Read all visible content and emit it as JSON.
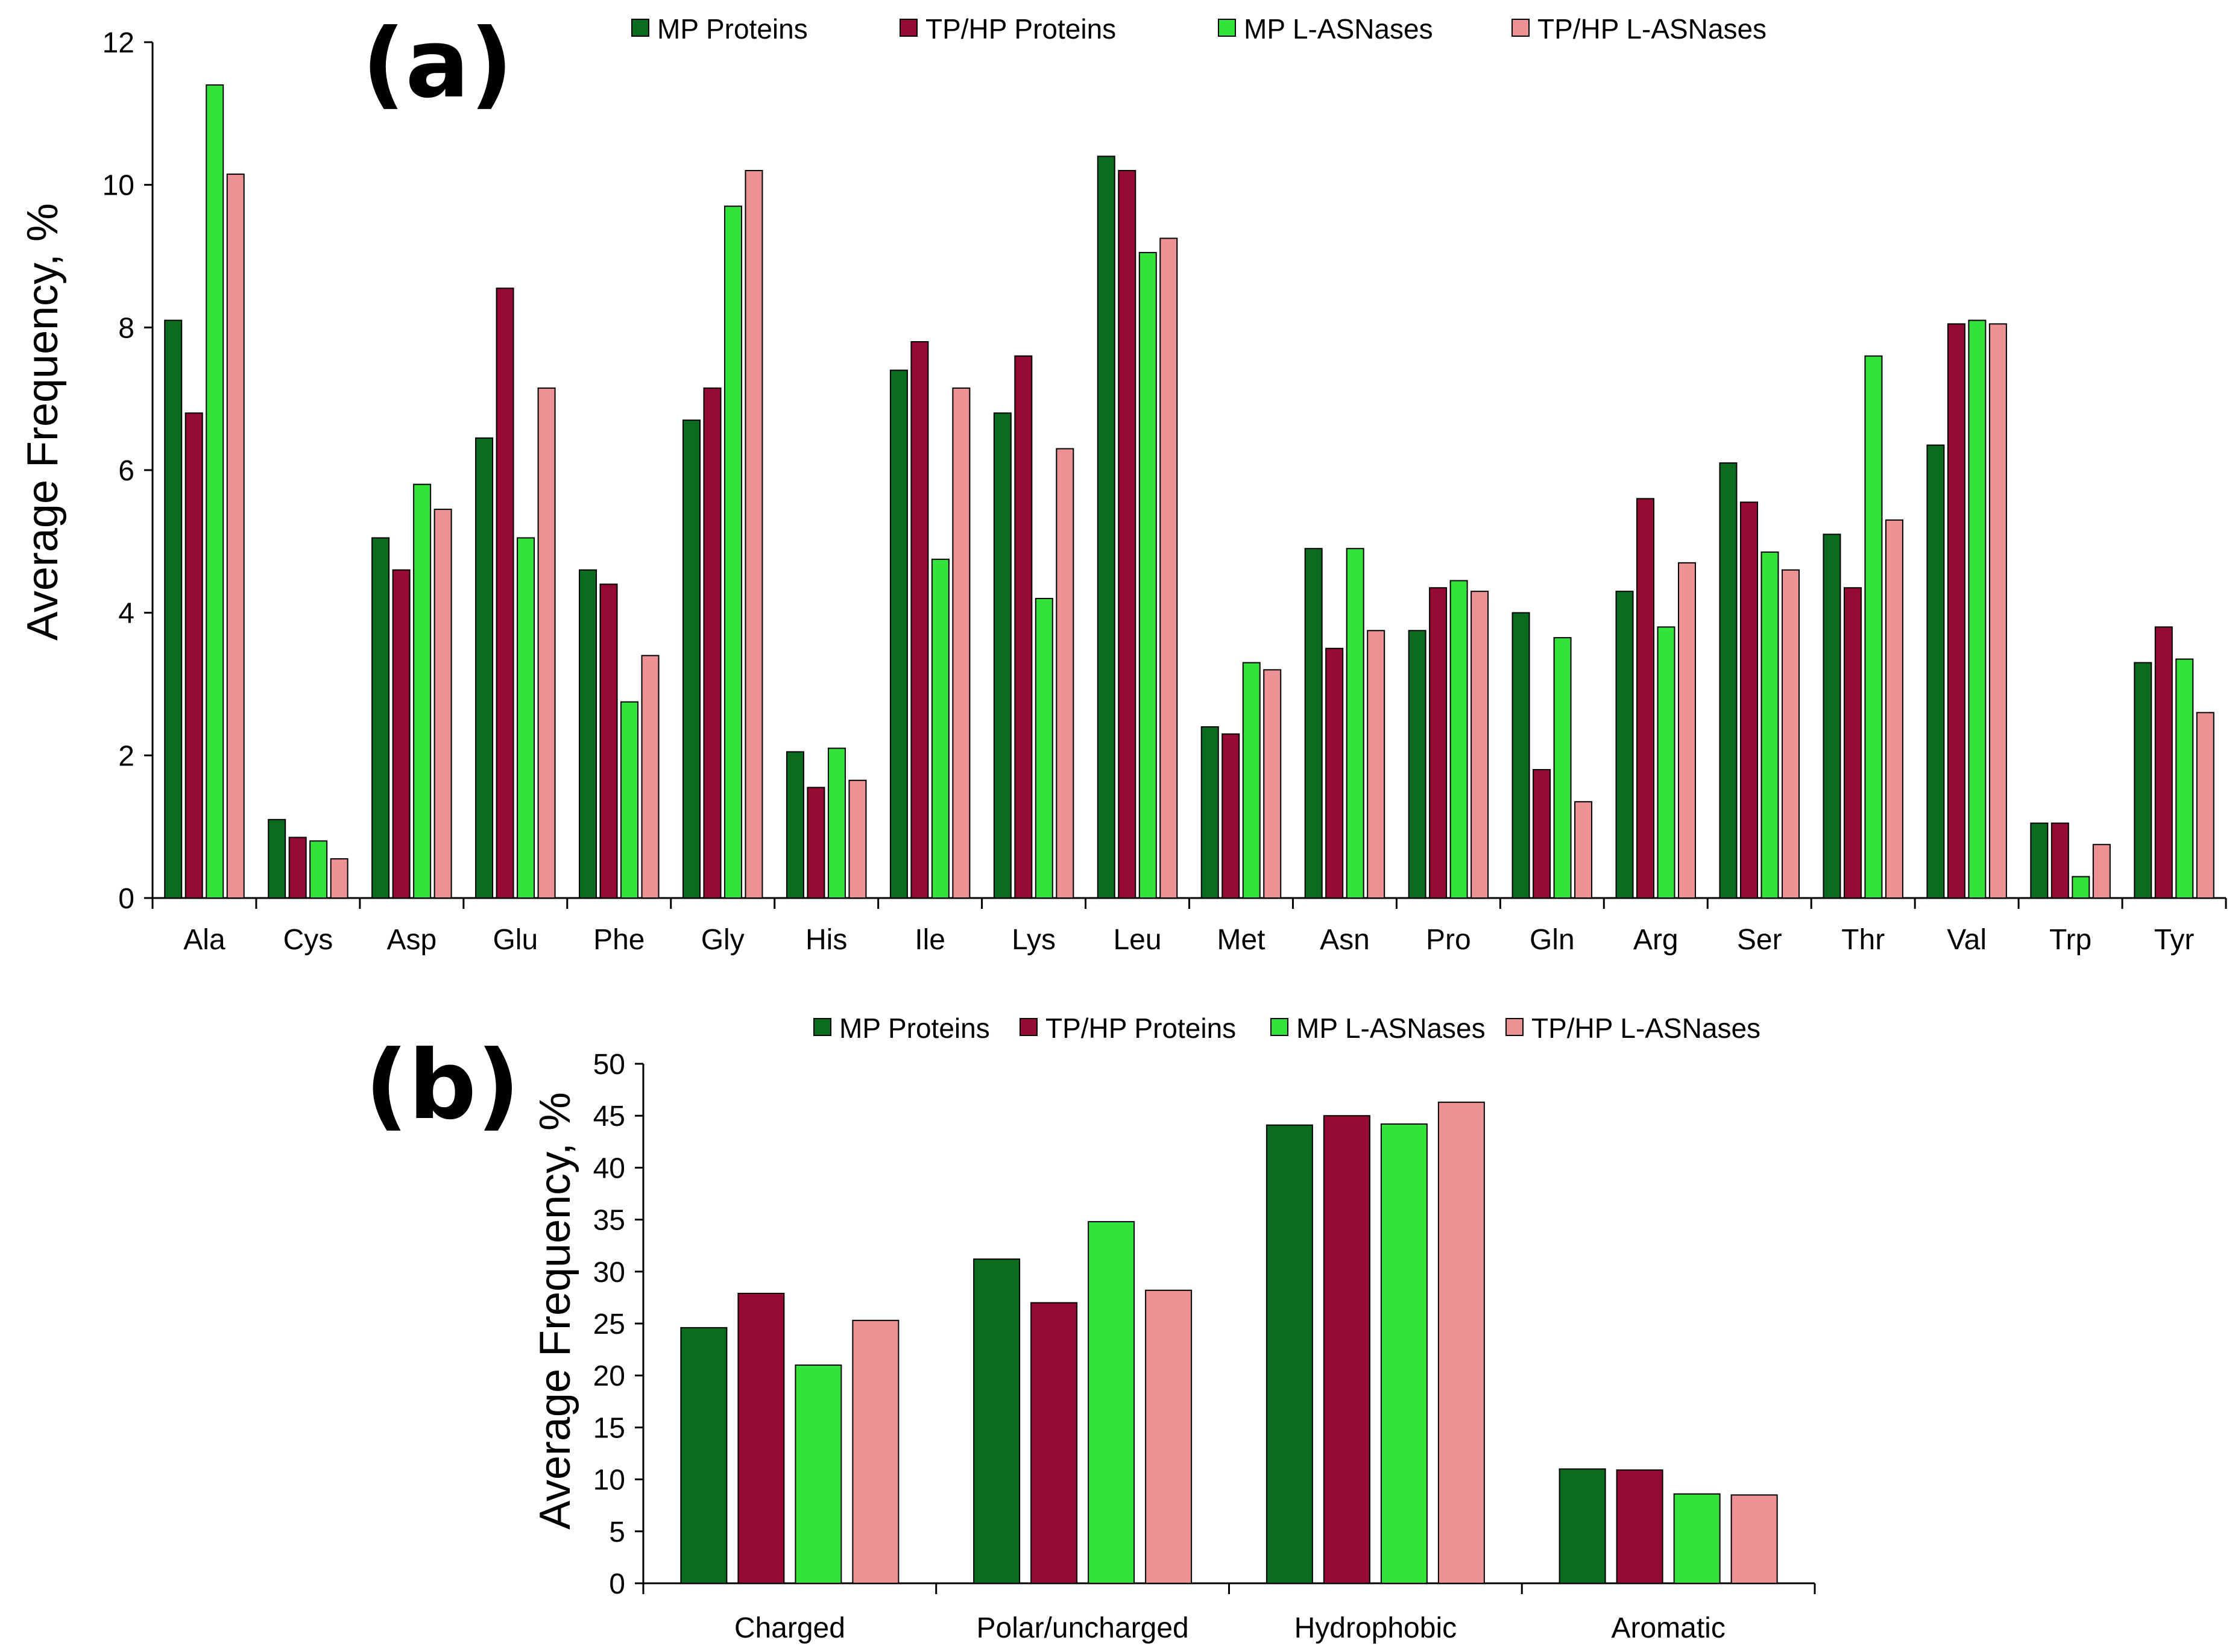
{
  "colors": {
    "MP Proteins": "#0b6b1e",
    "TP/HP Proteins": "#950b33",
    "MP L-ASNases": "#33e33c",
    "TP/HP L-ASNases": "#ec9294"
  },
  "chart_data": [
    {
      "panel": "(a)",
      "type": "bar",
      "ylabel": "Average Frequency, %",
      "ylim": [
        0,
        12
      ],
      "yticks": [
        0,
        2,
        4,
        6,
        8,
        10,
        12
      ],
      "legend_position": "top",
      "categories": [
        "Ala",
        "Cys",
        "Asp",
        "Glu",
        "Phe",
        "Gly",
        "His",
        "Ile",
        "Lys",
        "Leu",
        "Met",
        "Asn",
        "Pro",
        "Gln",
        "Arg",
        "Ser",
        "Thr",
        "Val",
        "Trp",
        "Tyr"
      ],
      "series": [
        {
          "name": "MP Proteins",
          "values": [
            8.1,
            1.1,
            5.05,
            6.45,
            4.6,
            6.7,
            2.05,
            7.4,
            6.8,
            10.4,
            2.4,
            4.9,
            3.75,
            4.0,
            4.3,
            6.1,
            5.1,
            6.35,
            1.05,
            3.3
          ]
        },
        {
          "name": "TP/HP Proteins",
          "values": [
            6.8,
            0.85,
            4.6,
            8.55,
            4.4,
            7.15,
            1.55,
            7.8,
            7.6,
            10.2,
            2.3,
            3.5,
            4.35,
            1.8,
            5.6,
            5.55,
            4.35,
            8.05,
            1.05,
            3.8
          ]
        },
        {
          "name": "MP L-ASNases",
          "values": [
            11.4,
            0.8,
            5.8,
            5.05,
            2.75,
            9.7,
            2.1,
            4.75,
            4.2,
            9.05,
            3.3,
            4.9,
            4.45,
            3.65,
            3.8,
            4.85,
            7.6,
            8.1,
            0.3,
            3.35
          ]
        },
        {
          "name": "TP/HP L-ASNases",
          "values": [
            10.15,
            0.55,
            5.45,
            7.15,
            3.4,
            10.2,
            1.65,
            7.15,
            6.3,
            9.25,
            3.2,
            3.75,
            4.3,
            1.35,
            4.7,
            4.6,
            5.3,
            8.05,
            0.75,
            2.6
          ]
        }
      ]
    },
    {
      "panel": "(b)",
      "type": "bar",
      "ylabel": "Average Frequency, %",
      "ylim": [
        0,
        50
      ],
      "yticks": [
        0,
        5,
        10,
        15,
        20,
        25,
        30,
        35,
        40,
        45,
        50
      ],
      "legend_position": "top",
      "categories": [
        "Charged",
        "Polar/uncharged",
        "Hydrophobic",
        "Aromatic"
      ],
      "series": [
        {
          "name": "MP Proteins",
          "values": [
            24.6,
            31.2,
            44.1,
            11.0
          ]
        },
        {
          "name": "TP/HP Proteins",
          "values": [
            27.9,
            27.0,
            45.0,
            10.9
          ]
        },
        {
          "name": "MP L-ASNases",
          "values": [
            21.0,
            34.8,
            44.2,
            8.6
          ]
        },
        {
          "name": "TP/HP L-ASNases",
          "values": [
            25.3,
            28.2,
            46.3,
            8.5
          ]
        }
      ]
    }
  ]
}
